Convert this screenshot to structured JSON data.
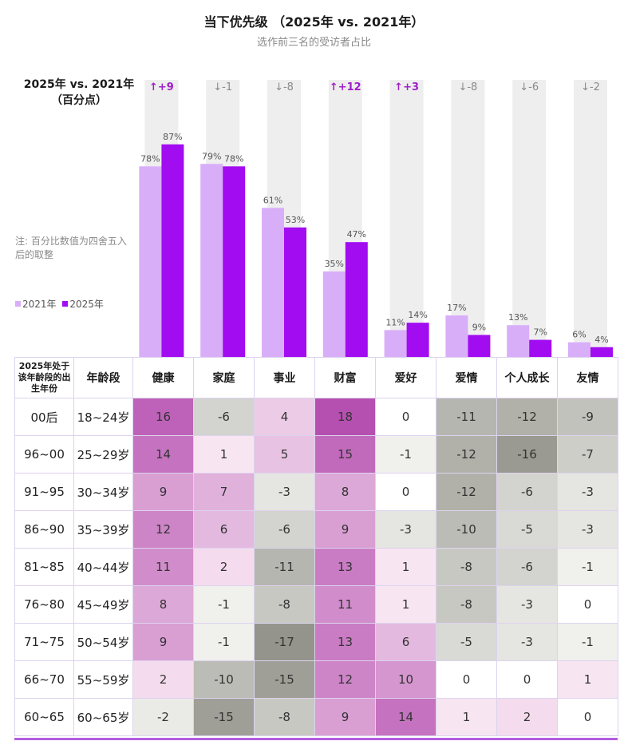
{
  "title": "当下优先级 （2025年 vs. 2021年）",
  "subtitle": "选作前三名的受访者占比",
  "change_header": {
    "line1": "2025年 vs. 2021年",
    "line2": "（百分点）"
  },
  "note": "注: 百分比数值为四舍五入后的取整",
  "legend": {
    "series_2021": "2021年",
    "series_2025": "2025年"
  },
  "colors": {
    "series_2021": "#d9aef9",
    "series_2025": "#a20cf0",
    "up_arrow": "#a020c8",
    "down_arrow": "#8a8a8a",
    "column_bg": "#eeeeee",
    "heat_positive": "#b550b0",
    "heat_negative": "#8e8e86"
  },
  "chart_data": [
    {
      "type": "bar",
      "title": "当下优先级 （2025年 vs. 2021年）",
      "subtitle": "选作前三名的受访者占比",
      "categories": [
        "健康",
        "家庭",
        "事业",
        "财富",
        "爱好",
        "爱情",
        "个人成长",
        "友情"
      ],
      "series": [
        {
          "name": "2021年",
          "values": [
            78,
            79,
            61,
            35,
            11,
            17,
            13,
            6
          ]
        },
        {
          "name": "2025年",
          "values": [
            87,
            78,
            53,
            47,
            14,
            9,
            7,
            4
          ]
        }
      ],
      "changes": [
        "+9",
        "-1",
        "-8",
        "+12",
        "+3",
        "-8",
        "-6",
        "-2"
      ],
      "change_directions": [
        "up",
        "down",
        "down",
        "up",
        "up",
        "down",
        "down",
        "down"
      ],
      "value_suffix": "%",
      "ylim": [
        0,
        100
      ],
      "legend_position": "left"
    },
    {
      "type": "heatmap",
      "corner_header": "2025年处于该年龄段的出生年份",
      "age_header": "年龄段",
      "columns": [
        "健康",
        "家庭",
        "事业",
        "财富",
        "爱好",
        "爱情",
        "个人成长",
        "友情"
      ],
      "rows": [
        {
          "birth": "00后",
          "age": "18~24岁",
          "values": [
            16,
            -6,
            4,
            18,
            0,
            -11,
            -12,
            -9
          ]
        },
        {
          "birth": "96~00",
          "age": "25~29岁",
          "values": [
            14,
            1,
            5,
            15,
            -1,
            -12,
            -16,
            -7
          ]
        },
        {
          "birth": "91~95",
          "age": "30~34岁",
          "values": [
            9,
            7,
            -3,
            8,
            0,
            -12,
            -6,
            -3
          ]
        },
        {
          "birth": "86~90",
          "age": "35~39岁",
          "values": [
            12,
            6,
            -6,
            9,
            -3,
            -10,
            -5,
            -3
          ]
        },
        {
          "birth": "81~85",
          "age": "40~44岁",
          "values": [
            11,
            2,
            -11,
            13,
            1,
            -8,
            -6,
            -1
          ]
        },
        {
          "birth": "76~80",
          "age": "45~49岁",
          "values": [
            8,
            -1,
            -8,
            11,
            1,
            -8,
            -3,
            0
          ]
        },
        {
          "birth": "71~75",
          "age": "50~54岁",
          "values": [
            9,
            -1,
            -17,
            13,
            6,
            -5,
            -3,
            -1
          ]
        },
        {
          "birth": "66~70",
          "age": "55~59岁",
          "values": [
            2,
            -10,
            -15,
            12,
            10,
            0,
            0,
            1
          ]
        },
        {
          "birth": "60~65",
          "age": "60~65岁",
          "values": [
            -2,
            -15,
            -8,
            9,
            14,
            1,
            2,
            0
          ]
        }
      ]
    }
  ]
}
